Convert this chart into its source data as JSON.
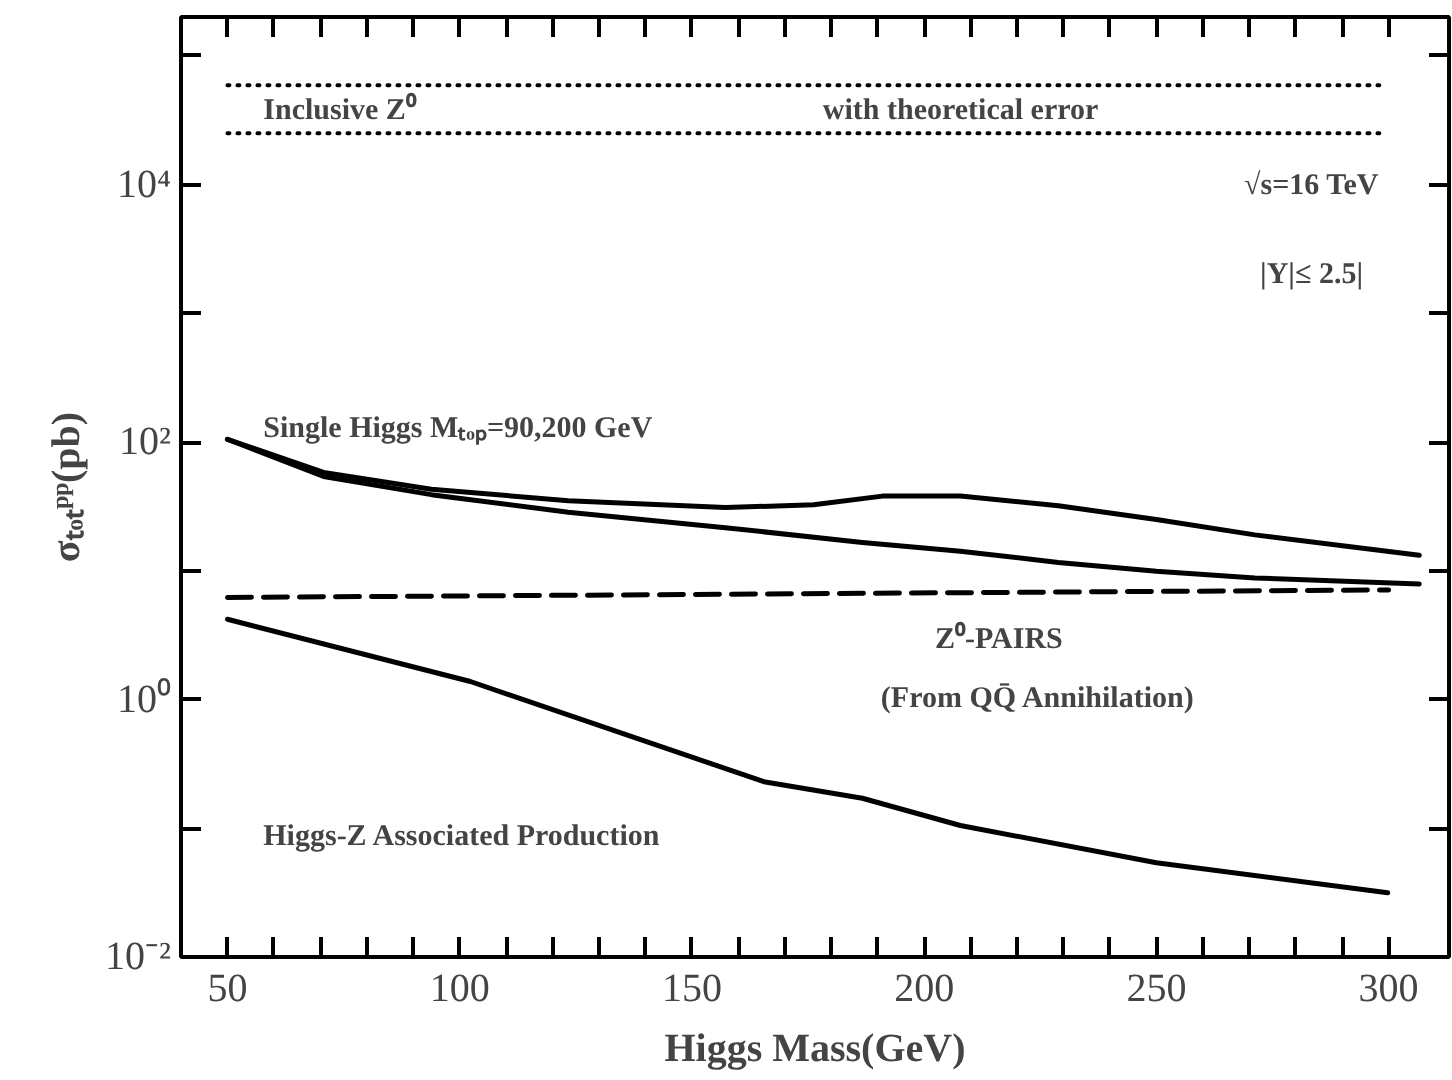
{
  "chart_data": {
    "type": "line",
    "xlabel": "Higgs Mass(GeV)",
    "ylabel": "σₜₒₜᵖᵖ(pb)",
    "log": "y",
    "grid": false,
    "xlim": [
      40,
      313
    ],
    "ylim": [
      0.01,
      200000
    ],
    "xticks": [
      50,
      {
        "value": 60,
        "label": null
      },
      {
        "value": 70,
        "label": null
      },
      {
        "value": 80,
        "label": null
      },
      {
        "value": 90,
        "label": null
      },
      100,
      {
        "value": 110,
        "label": null
      },
      {
        "value": 120,
        "label": null
      },
      {
        "value": 130,
        "label": null
      },
      {
        "value": 140,
        "label": null
      },
      150,
      {
        "value": 160,
        "label": null
      },
      {
        "value": 170,
        "label": null
      },
      {
        "value": 180,
        "label": null
      },
      {
        "value": 190,
        "label": null
      },
      200,
      {
        "value": 210,
        "label": null
      },
      {
        "value": 220,
        "label": null
      },
      {
        "value": 230,
        "label": null
      },
      {
        "value": 240,
        "label": null
      },
      250,
      {
        "value": 260,
        "label": null
      },
      {
        "value": 270,
        "label": null
      },
      {
        "value": 280,
        "label": null
      },
      {
        "value": 290,
        "label": null
      },
      300
    ],
    "yticks": [
      {
        "value": 0.01,
        "label": "10⁻²"
      },
      {
        "value": 0.1,
        "label": null
      },
      {
        "value": 1,
        "label": "10⁰"
      },
      {
        "value": 10,
        "label": null
      },
      {
        "value": 100,
        "label": "10²"
      },
      {
        "value": 1000,
        "label": null
      },
      {
        "value": 10000,
        "label": "10⁴"
      },
      {
        "value": 100000,
        "label": null
      }
    ],
    "series": [
      {
        "color": "#000000",
        "line_style": "dotted",
        "x": [
          50,
          298
        ],
        "values": [
          59000,
          59000
        ]
      },
      {
        "color": "#000000",
        "line_style": "dotted",
        "x": [
          50,
          298
        ],
        "values": [
          25000,
          25000
        ]
      },
      {
        "color": "#000000",
        "line_style": "solid",
        "x": [
          50,
          70.7,
          93.9,
          123.4,
          157.2,
          176.2,
          191,
          207.8,
          228.9,
          250,
          271.2,
          306.6
        ],
        "values": [
          105,
          58,
          43,
          35,
          31,
          32.5,
          38,
          38,
          32,
          25,
          19,
          13.2
        ]
      },
      {
        "color": "#000000",
        "line_style": "solid",
        "x": [
          50,
          70.7,
          93.9,
          123.4,
          157.2,
          186.7,
          207.8,
          228.9,
          250,
          271.2,
          306.6
        ],
        "values": [
          105,
          54,
          39,
          28.5,
          21.6,
          16.6,
          14.2,
          11.6,
          9.9,
          8.8,
          7.9
        ]
      },
      {
        "color": "#000000",
        "line_style": "dashed",
        "x": [
          50,
          300
        ],
        "values": [
          6.2,
          7.1
        ]
      },
      {
        "color": "#000000",
        "line_style": "solid",
        "x": [
          50,
          102.3,
          165.5,
          186.7,
          207.8,
          250,
          299.8
        ],
        "values": [
          4.2,
          1.38,
          0.23,
          0.171,
          0.105,
          0.054,
          0.0316
        ]
      }
    ],
    "annotations": [
      "Inclusive Z⁰",
      "with theoretical error",
      "√s=16 TeV",
      "|Y|≤ 2.5|",
      "Single Higgs Mₜₒₚ=90,200 GeV",
      "Z⁰-PAIRS",
      "(From QQ̄ Annihilation)",
      "Higgs-Z Associated Production"
    ]
  }
}
